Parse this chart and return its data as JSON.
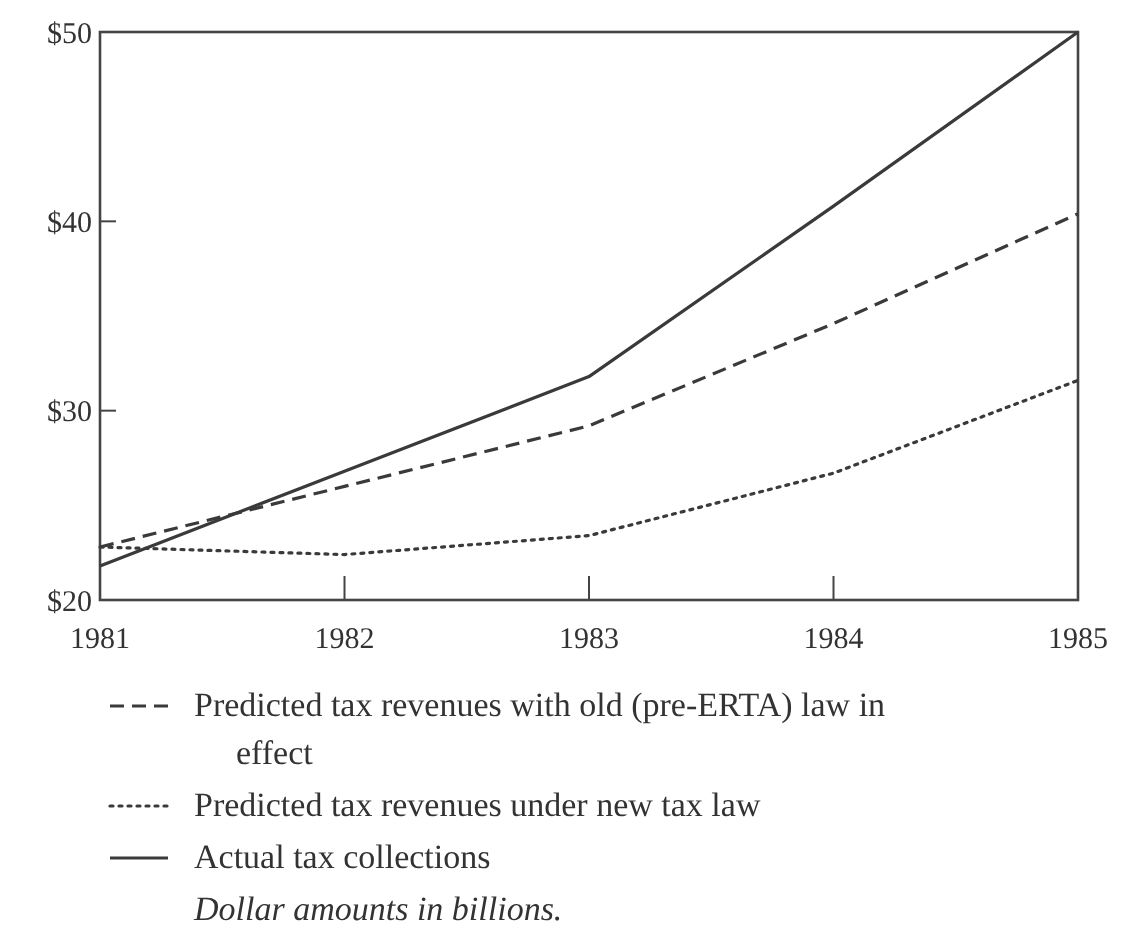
{
  "chart_data": {
    "type": "line",
    "categories": [
      "1981",
      "1982",
      "1983",
      "1984",
      "1985"
    ],
    "series": [
      {
        "name": "Predicted tax revenues with old (pre-ERTA) law in effect",
        "color": "#3a3a3a",
        "line_style": "dashed",
        "values": [
          22.8,
          26.0,
          29.2,
          34.6,
          40.4
        ]
      },
      {
        "name": "Predicted tax revenues under new tax law",
        "color": "#3a3a3a",
        "line_style": "dotted",
        "values": [
          22.8,
          22.4,
          23.4,
          26.7,
          31.6
        ]
      },
      {
        "name": "Actual tax collections",
        "color": "#3a3a3a",
        "line_style": "solid",
        "values": [
          21.8,
          26.8,
          31.8,
          40.8,
          50
        ]
      }
    ],
    "ylim": [
      20,
      50
    ],
    "yticks": [
      {
        "value": 20,
        "label": "$20"
      },
      {
        "value": 30,
        "label": "$30"
      },
      {
        "value": 40,
        "label": "$40"
      },
      {
        "value": 50,
        "label": "$50"
      }
    ],
    "grid": false,
    "legend": "bottom",
    "marker": "none",
    "annotations": [
      "Dollar amounts in billions."
    ]
  }
}
